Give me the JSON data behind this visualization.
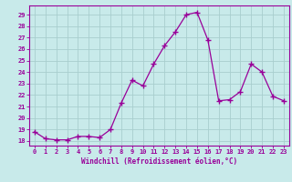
{
  "x": [
    0,
    1,
    2,
    3,
    4,
    5,
    6,
    7,
    8,
    9,
    10,
    11,
    12,
    13,
    14,
    15,
    16,
    17,
    18,
    19,
    20,
    21,
    22,
    23
  ],
  "y": [
    18.8,
    18.2,
    18.1,
    18.1,
    18.4,
    18.4,
    18.3,
    19.0,
    21.3,
    23.3,
    22.8,
    24.7,
    26.3,
    27.5,
    29.0,
    29.2,
    26.8,
    21.5,
    21.6,
    22.3,
    24.7,
    24.0,
    21.9,
    21.5
  ],
  "line_color": "#990099",
  "marker": "+",
  "bg_color": "#c8eaea",
  "grid_color": "#a8cece",
  "xlabel": "Windchill (Refroidissement éolien,°C)",
  "ylabel_ticks": [
    18,
    19,
    20,
    21,
    22,
    23,
    24,
    25,
    26,
    27,
    28,
    29
  ],
  "xlim": [
    -0.5,
    23.5
  ],
  "ylim": [
    17.6,
    29.8
  ],
  "tick_fontsize": 5.0,
  "xlabel_fontsize": 5.5
}
